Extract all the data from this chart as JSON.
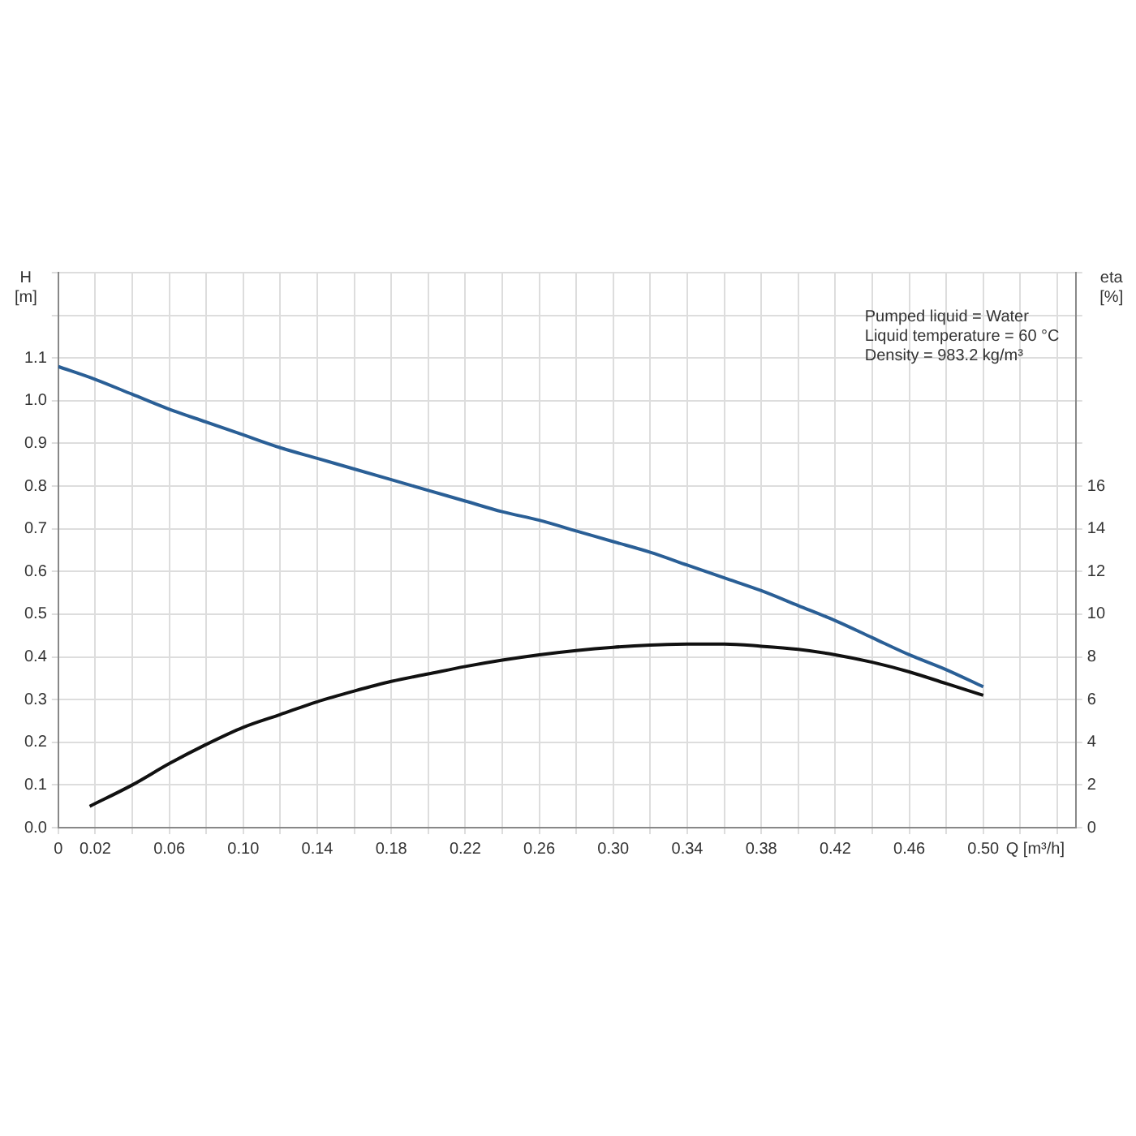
{
  "chart_data": {
    "type": "line",
    "xlabel": "Q [m³/h]",
    "ylabel": "H [m]",
    "y2label": "eta [%]",
    "annotations": [
      "Pumped liquid = Water",
      "Liquid temperature = 60 °C",
      "Density = 983.2 kg/m³"
    ],
    "xlim": [
      0,
      0.55
    ],
    "xticks": [
      0,
      0.02,
      {
        "value": 0.04,
        "label": null
      },
      0.06,
      {
        "value": 0.08,
        "label": null
      },
      "0.10",
      {
        "value": 0.12,
        "label": null
      },
      0.14,
      {
        "value": 0.16,
        "label": null
      },
      0.18,
      {
        "value": 0.2,
        "label": null
      },
      0.22,
      {
        "value": 0.24,
        "label": null
      },
      0.26,
      {
        "value": 0.28,
        "label": null
      },
      "0.30",
      {
        "value": 0.32,
        "label": null
      },
      0.34,
      {
        "value": 0.36,
        "label": null
      },
      0.38,
      {
        "value": 0.4,
        "label": null
      },
      0.42,
      {
        "value": 0.44,
        "label": null
      },
      0.46,
      {
        "value": 0.48,
        "label": null
      },
      "0.50",
      {
        "value": 0.52,
        "label": null
      },
      {
        "value": 0.54,
        "label": null
      }
    ],
    "ylim": [
      0,
      1.3
    ],
    "yticks": [
      "0.0",
      0.1,
      0.2,
      0.3,
      0.4,
      0.5,
      0.6,
      0.7,
      0.8,
      0.9,
      "1.0",
      1.1,
      {
        "value": 1.2,
        "label": null
      },
      {
        "value": 1.3,
        "label": null
      }
    ],
    "y2lim": [
      0,
      26
    ],
    "y2ticks": [
      0,
      2,
      4,
      6,
      8,
      10,
      12,
      14,
      16,
      {
        "value": 18,
        "label": null
      },
      {
        "value": 20,
        "label": null
      },
      {
        "value": 22,
        "label": null
      },
      {
        "value": 24,
        "label": null
      },
      {
        "value": 26,
        "label": null
      }
    ],
    "grid": true,
    "marker": "none",
    "line_style": "solid",
    "series": [
      {
        "color": "#2a5f96",
        "x": [
          0,
          0.02,
          0.04,
          0.06,
          0.08,
          0.1,
          0.12,
          0.14,
          0.16,
          0.18,
          0.2,
          0.22,
          0.24,
          0.26,
          0.28,
          0.3,
          0.32,
          0.34,
          0.36,
          0.38,
          0.4,
          0.42,
          0.44,
          0.46,
          0.48,
          0.5
        ],
        "values": [
          1.08,
          1.05,
          1.015,
          0.98,
          0.95,
          0.92,
          0.89,
          0.865,
          0.84,
          0.815,
          0.79,
          0.765,
          0.74,
          0.72,
          0.695,
          0.67,
          0.645,
          0.615,
          0.585,
          0.555,
          0.52,
          0.485,
          0.445,
          0.405,
          0.37,
          0.33
        ]
      },
      {
        "color": "#111111",
        "axis": "y2",
        "x": [
          0.017,
          0.04,
          0.06,
          0.08,
          0.1,
          0.12,
          0.14,
          0.16,
          0.18,
          0.2,
          0.22,
          0.24,
          0.26,
          0.28,
          0.3,
          0.32,
          0.34,
          0.36,
          0.38,
          0.4,
          0.42,
          0.44,
          0.46,
          0.48,
          0.5
        ],
        "values": [
          1.0,
          2.0,
          3.0,
          3.9,
          4.7,
          5.3,
          5.9,
          6.4,
          6.85,
          7.2,
          7.55,
          7.85,
          8.1,
          8.3,
          8.45,
          8.55,
          8.6,
          8.6,
          8.5,
          8.35,
          8.1,
          7.75,
          7.3,
          6.75,
          6.2
        ]
      }
    ]
  }
}
